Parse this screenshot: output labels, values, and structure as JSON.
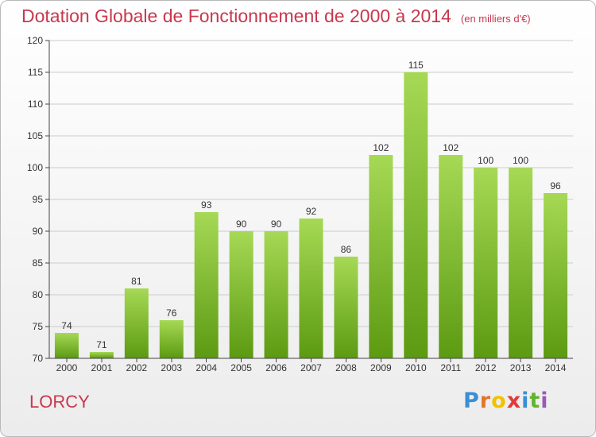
{
  "title": "Dotation Globale de Fonctionnement de 2000 à 2014",
  "subtitle": "(en milliers d'€)",
  "place": "LORCY",
  "logo": {
    "letters": [
      "P",
      "r",
      "o",
      "x",
      "i",
      "t",
      "i"
    ],
    "colors": [
      "#3b8fd4",
      "#e3742a",
      "#f2c200",
      "#e23a3a",
      "#3b8fd4",
      "#62b42f",
      "#9b59b6"
    ]
  },
  "colors": {
    "bar_top": "#a6d955",
    "bar_bottom": "#5c9a12",
    "title": "#c8384e",
    "grid": "#cccccc"
  },
  "chart_data": {
    "type": "bar",
    "categories": [
      "2000",
      "2001",
      "2002",
      "2003",
      "2004",
      "2005",
      "2006",
      "2007",
      "2008",
      "2009",
      "2010",
      "2011",
      "2012",
      "2013",
      "2014"
    ],
    "values": [
      74,
      71,
      81,
      76,
      93,
      90,
      90,
      92,
      86,
      102,
      115,
      102,
      100,
      100,
      96
    ],
    "ylim": [
      70,
      120
    ],
    "yticks": [
      70,
      75,
      80,
      85,
      90,
      95,
      100,
      105,
      110,
      115,
      120
    ],
    "grid": true
  }
}
